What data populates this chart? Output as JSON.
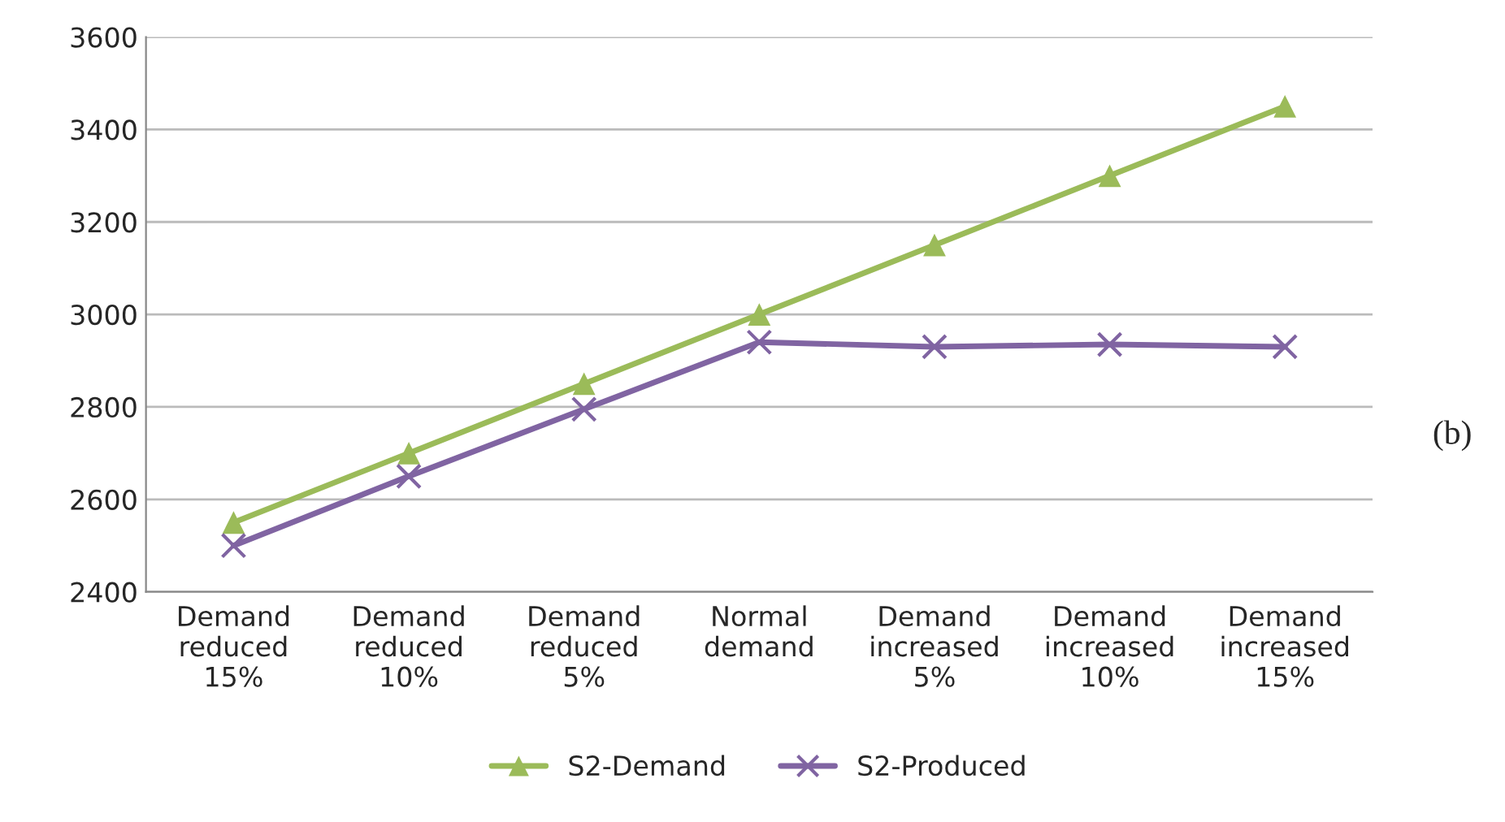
{
  "chart_data": {
    "type": "line",
    "categories": [
      "Demand\nreduced\n15%",
      "Demand\nreduced\n10%",
      "Demand\nreduced\n5%",
      "Normal\ndemand",
      "Demand\nincreased\n5%",
      "Demand\nincreased\n10%",
      "Demand\nincreased\n15%"
    ],
    "series": [
      {
        "name": "S2-Demand",
        "color": "#9bbb59",
        "marker": "triangle",
        "values": [
          2550,
          2700,
          2850,
          3000,
          3150,
          3300,
          3450
        ]
      },
      {
        "name": "S2-Produced",
        "color": "#8064a2",
        "marker": "cross",
        "values": [
          2500,
          2650,
          2795,
          2940,
          2930,
          2935,
          2930
        ]
      }
    ],
    "ylim": [
      2400,
      3600
    ],
    "yticks": [
      2400,
      2600,
      2800,
      3000,
      3200,
      3400,
      3600
    ],
    "grid": "y",
    "legend": "bottom",
    "annotations": [
      "(b)"
    ]
  }
}
